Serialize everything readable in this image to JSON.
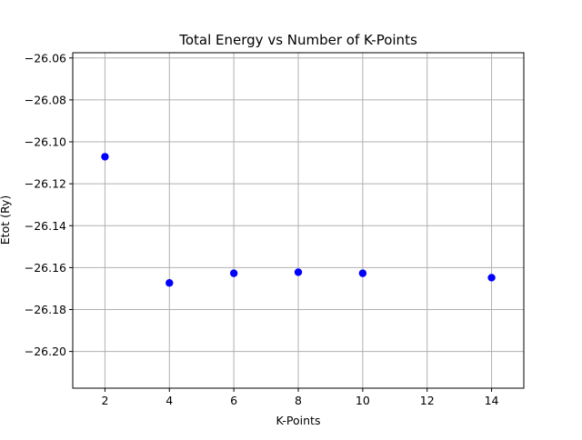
{
  "chart_data": {
    "type": "scatter",
    "title": "Total Energy vs Number of K-Points",
    "xlabel": "K-Points",
    "ylabel": "Etot (Ry)",
    "xlim": [
      1,
      15
    ],
    "ylim": [
      -26.2175,
      -26.0575
    ],
    "xticks": [
      2,
      4,
      6,
      8,
      10,
      12,
      14
    ],
    "xtick_labels": [
      "2",
      "4",
      "6",
      "8",
      "10",
      "12",
      "14"
    ],
    "yticks": [
      -26.06,
      -26.08,
      -26.1,
      -26.12,
      -26.14,
      -26.16,
      -26.18,
      -26.2
    ],
    "ytick_labels": [
      "−26.06",
      "−26.08",
      "−26.10",
      "−26.12",
      "−26.14",
      "−26.16",
      "−26.18",
      "−26.20"
    ],
    "grid": true,
    "series": [
      {
        "color": "#0000ff",
        "x": [
          2,
          4,
          6,
          8,
          10,
          14
        ],
        "y": [
          -26.1071,
          -26.1673,
          -26.1627,
          -26.1622,
          -26.1627,
          -26.1648
        ]
      }
    ]
  }
}
